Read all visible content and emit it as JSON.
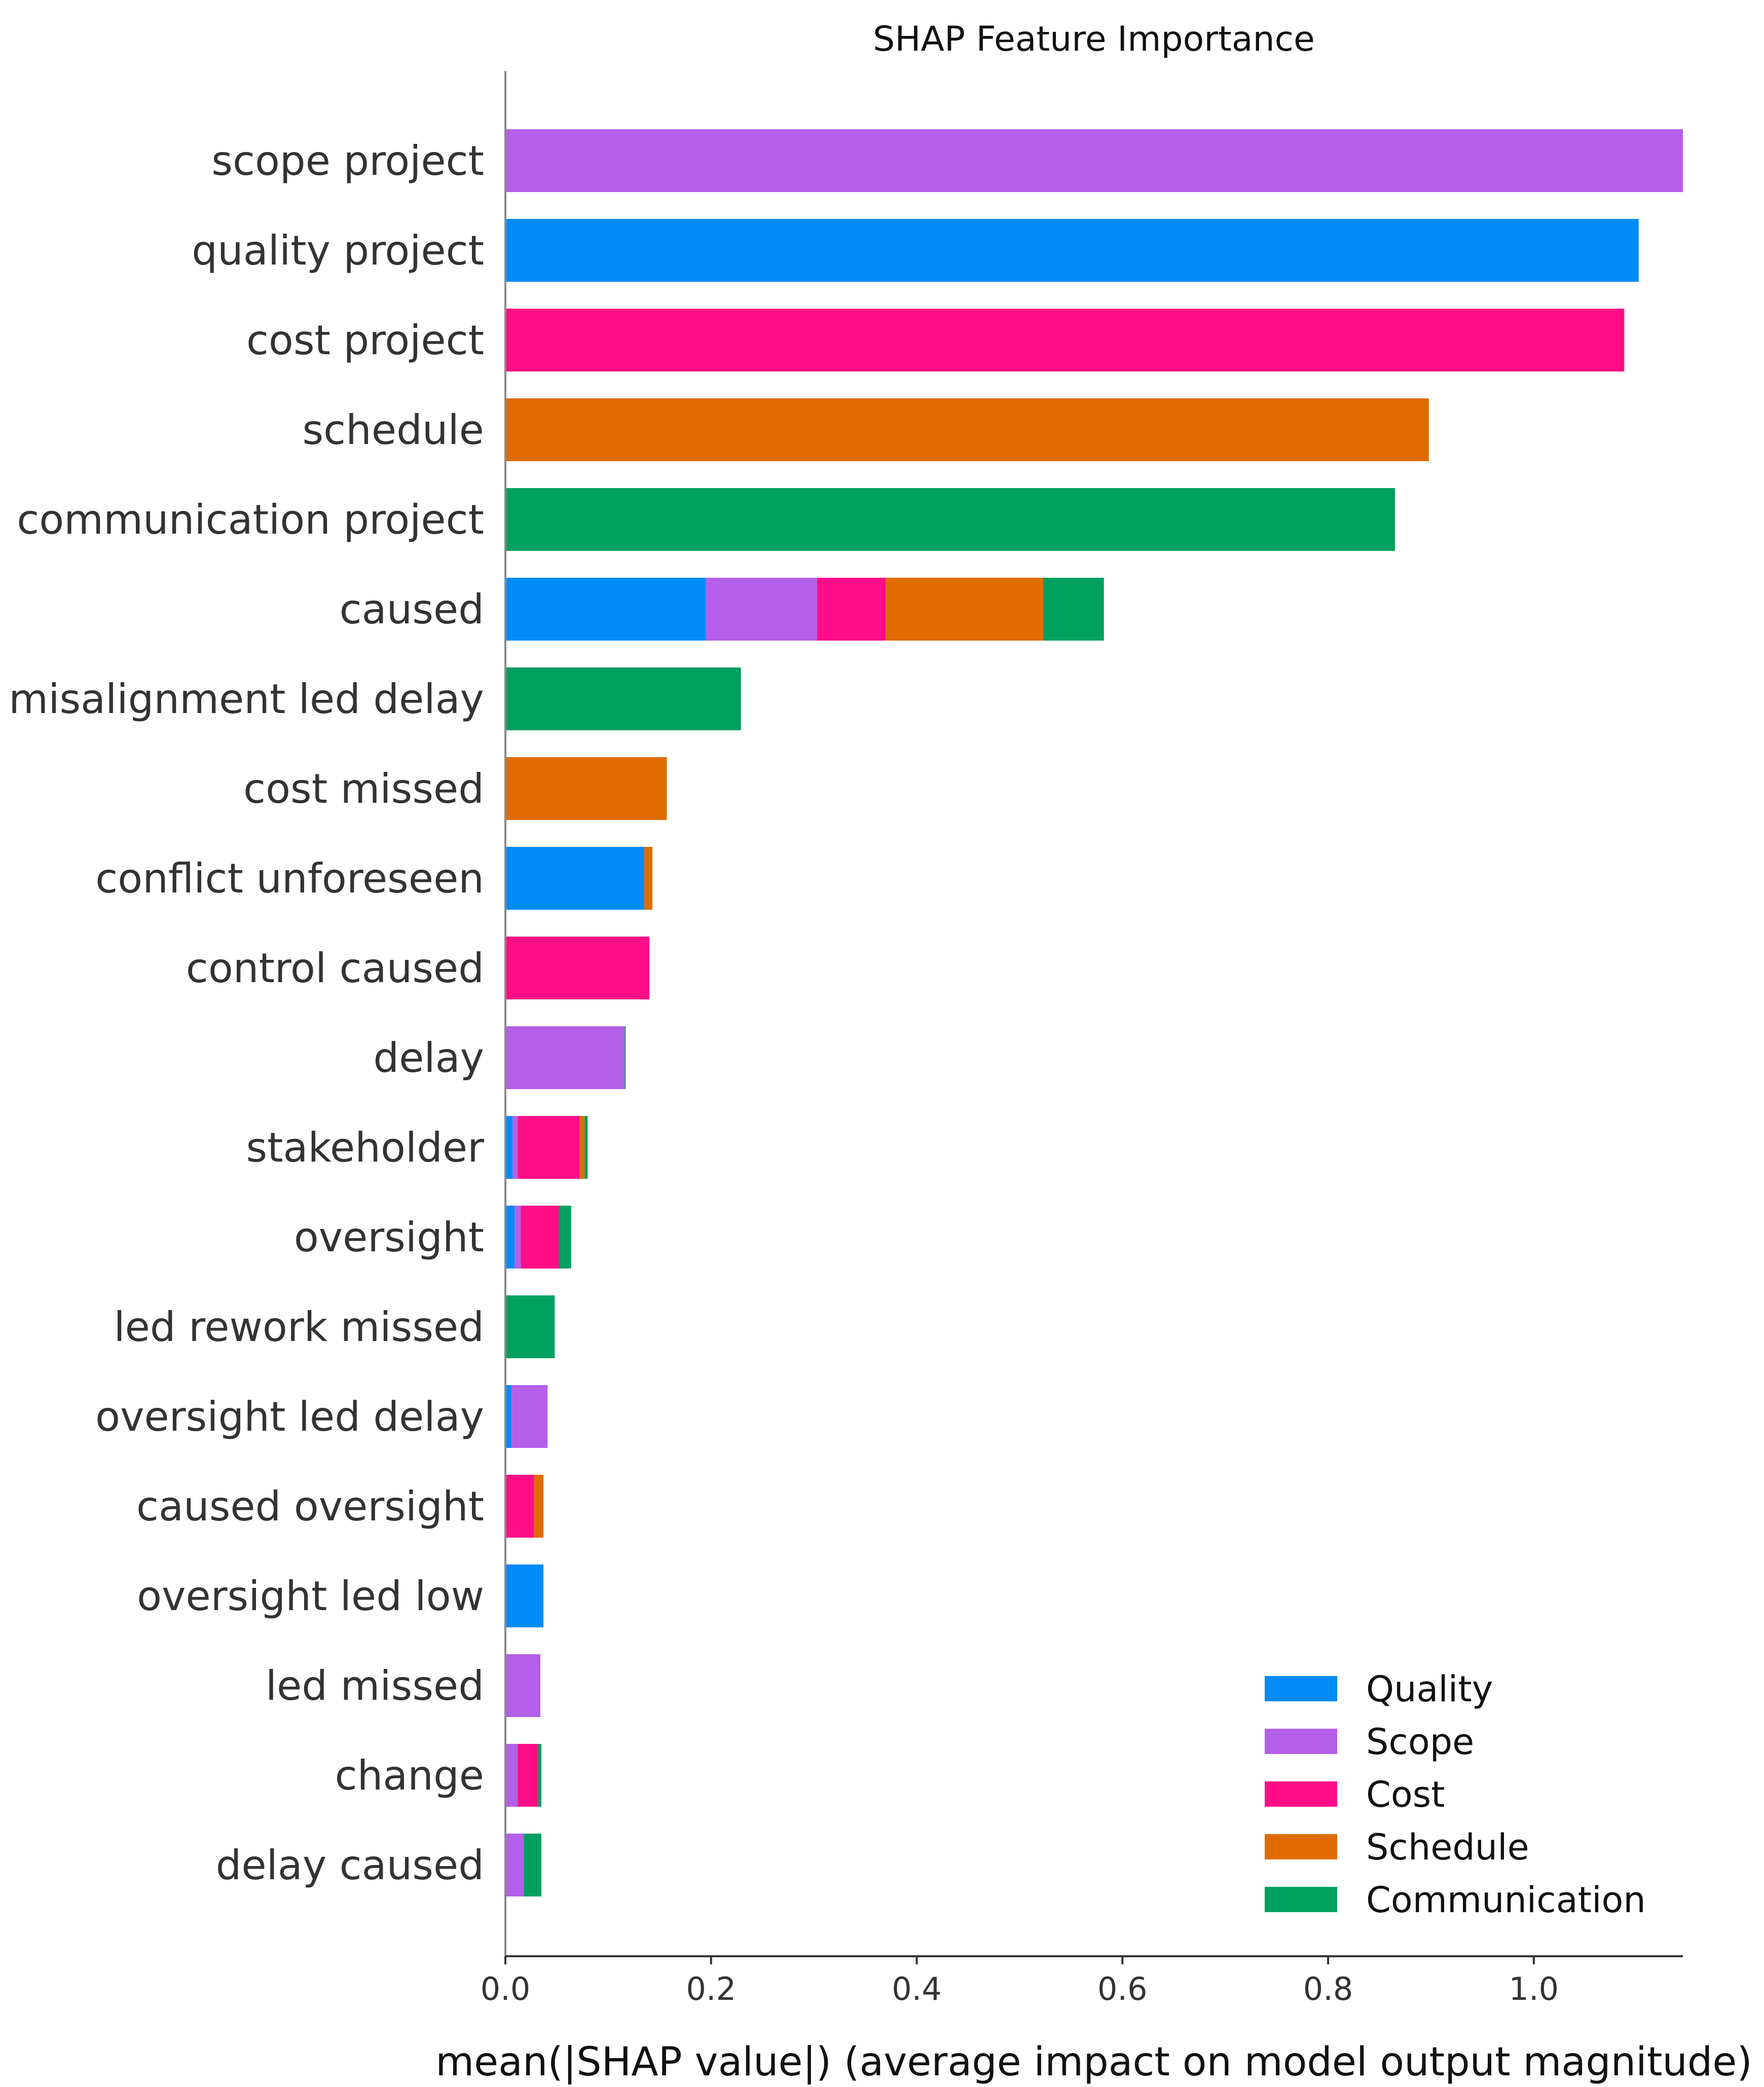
{
  "chart_data": {
    "type": "bar",
    "orientation": "horizontal",
    "stacked": true,
    "title": "SHAP Feature Importance",
    "xlabel": "mean(|SHAP value|) (average impact on model output magnitude)",
    "ylabel": "",
    "xlim": [
      0,
      1.145
    ],
    "xticks": [
      0.0,
      0.2,
      0.4,
      0.6,
      0.8,
      1.0
    ],
    "xtick_labels": [
      "0.0",
      "0.2",
      "0.4",
      "0.6",
      "0.8",
      "1.0"
    ],
    "grid": false,
    "legend_position": "bottom-right",
    "categories": [
      "scope project",
      "quality project",
      "cost project",
      "schedule",
      "communication project",
      "caused",
      "misalignment led delay",
      "cost missed",
      "conflict unforeseen",
      "control caused",
      "delay",
      "stakeholder",
      "oversight",
      "led rework missed",
      "oversight led delay",
      "caused oversight",
      "oversight led low",
      "led missed",
      "change",
      "delay caused"
    ],
    "series": [
      {
        "name": "Quality",
        "color": "#008bfb",
        "values": [
          0,
          1.102,
          0,
          0,
          0,
          0.195,
          0,
          0,
          0.135,
          0,
          0,
          0.007,
          0.009,
          0,
          0.006,
          0,
          0.037,
          0,
          0,
          0
        ]
      },
      {
        "name": "Scope",
        "color": "#b45fe9",
        "values": [
          1.145,
          0,
          0,
          0,
          0,
          0.108,
          0,
          0,
          0,
          0,
          0.116,
          0.005,
          0.006,
          0,
          0.035,
          0,
          0,
          0.034,
          0.012,
          0.018
        ]
      },
      {
        "name": "Cost",
        "color": "#ff0d87",
        "values": [
          0,
          0,
          1.088,
          0,
          0,
          0.067,
          0,
          0,
          0,
          0.14,
          0,
          0.06,
          0.037,
          0,
          0,
          0.028,
          0,
          0,
          0.02,
          0
        ]
      },
      {
        "name": "Schedule",
        "color": "#e06c00",
        "values": [
          0,
          0,
          0,
          0.898,
          0,
          0.153,
          0,
          0.157,
          0.008,
          0,
          0,
          0.005,
          0,
          0,
          0,
          0.009,
          0,
          0,
          0,
          0
        ]
      },
      {
        "name": "Communication",
        "color": "#00a060",
        "values": [
          0,
          0,
          0,
          0,
          0.865,
          0.059,
          0.229,
          0,
          0,
          0,
          0.001,
          0.003,
          0.012,
          0.048,
          0,
          0,
          0,
          0,
          0.003,
          0.017
        ]
      }
    ]
  }
}
